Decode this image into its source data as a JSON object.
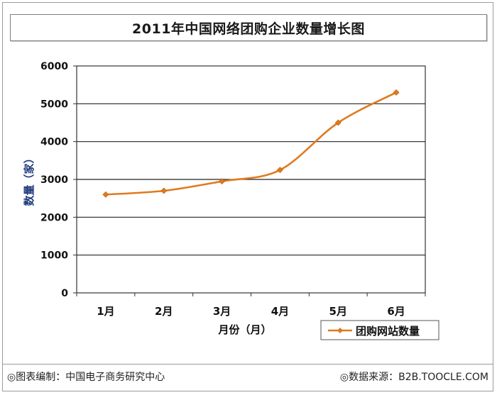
{
  "title": "2011年中国网络团购企业数量增长图",
  "chart_data": {
    "type": "line",
    "title": "2011年中国网络团购企业数量增长图",
    "xlabel": "月份（月）",
    "ylabel": "数量（家）",
    "categories": [
      "1月",
      "2月",
      "3月",
      "4月",
      "5月",
      "6月"
    ],
    "yticks": [
      0,
      1000,
      2000,
      3000,
      4000,
      5000,
      6000
    ],
    "ylim": [
      0,
      6000
    ],
    "grid": "horizontal",
    "legend_position": "bottom-right",
    "series": [
      {
        "name": "团购网站数量",
        "color": "#e07a1f",
        "values": [
          2600,
          2700,
          2950,
          3250,
          4500,
          5300
        ]
      }
    ]
  },
  "footer": {
    "left": "◎图表编制：中国电子商务研究中心",
    "right": "◎数据来源：B2B.TOOCLE.COM"
  }
}
